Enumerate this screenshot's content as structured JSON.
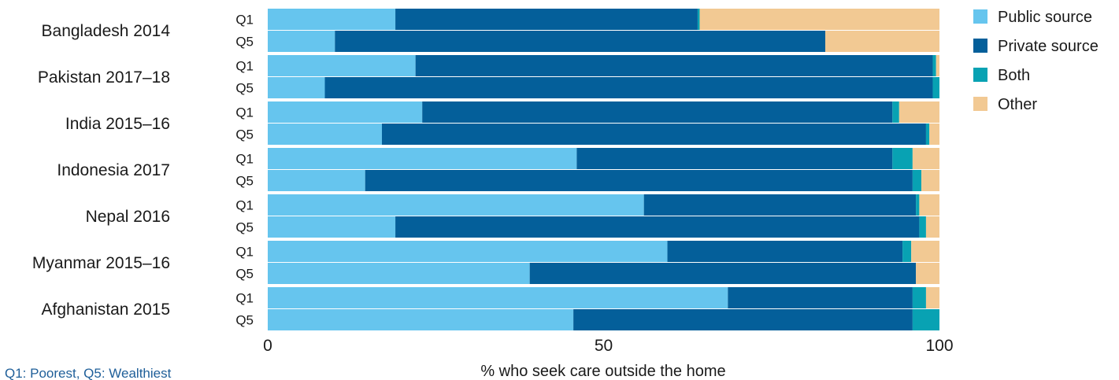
{
  "chart_data": {
    "type": "bar",
    "orientation": "horizontal",
    "stacked": true,
    "xlabel": "% who seek care outside the home",
    "xlim": [
      0,
      100
    ],
    "xticks": [
      "0",
      "50",
      "100"
    ],
    "footnote": "Q1: Poorest, Q5: Wealthiest",
    "legend_position": "top-right",
    "series_names": [
      "Public source",
      "Private source",
      "Both",
      "Other"
    ],
    "colors": {
      "Public source": "#66c5ee",
      "Private source": "#045f9a",
      "Both": "#08a2b3",
      "Other": "#f2c993"
    },
    "groups": [
      {
        "country": "Bangladesh 2014",
        "bars": [
          {
            "quintile": "Q1",
            "values": [
              19,
              45,
              0.3,
              35.7
            ]
          },
          {
            "quintile": "Q5",
            "values": [
              10,
              73,
              0,
              17
            ]
          }
        ]
      },
      {
        "country": "Pakistan 2017–18",
        "bars": [
          {
            "quintile": "Q1",
            "values": [
              22,
              77,
              0.5,
              0.5
            ]
          },
          {
            "quintile": "Q5",
            "values": [
              8.5,
              90.5,
              1,
              0
            ]
          }
        ]
      },
      {
        "country": "India 2015–16",
        "bars": [
          {
            "quintile": "Q1",
            "values": [
              23,
              70,
              1,
              6
            ]
          },
          {
            "quintile": "Q5",
            "values": [
              17,
              81,
              0.5,
              1.5
            ]
          }
        ]
      },
      {
        "country": "Indonesia 2017",
        "bars": [
          {
            "quintile": "Q1",
            "values": [
              46,
              47,
              3,
              4
            ]
          },
          {
            "quintile": "Q5",
            "values": [
              14.5,
              81.5,
              1.3,
              2.7
            ]
          }
        ]
      },
      {
        "country": "Nepal 2016",
        "bars": [
          {
            "quintile": "Q1",
            "values": [
              56,
              40.5,
              0.5,
              3
            ]
          },
          {
            "quintile": "Q5",
            "values": [
              19,
              78,
              1,
              2
            ]
          }
        ]
      },
      {
        "country": "Myanmar 2015–16",
        "bars": [
          {
            "quintile": "Q1",
            "values": [
              59.5,
              35,
              1.3,
              4.2
            ]
          },
          {
            "quintile": "Q5",
            "values": [
              39,
              57.5,
              0,
              3.5
            ]
          }
        ]
      },
      {
        "country": "Afghanistan 2015",
        "bars": [
          {
            "quintile": "Q1",
            "values": [
              68.5,
              27.5,
              2,
              2
            ]
          },
          {
            "quintile": "Q5",
            "values": [
              45.5,
              50.5,
              4,
              0
            ]
          }
        ]
      }
    ]
  }
}
